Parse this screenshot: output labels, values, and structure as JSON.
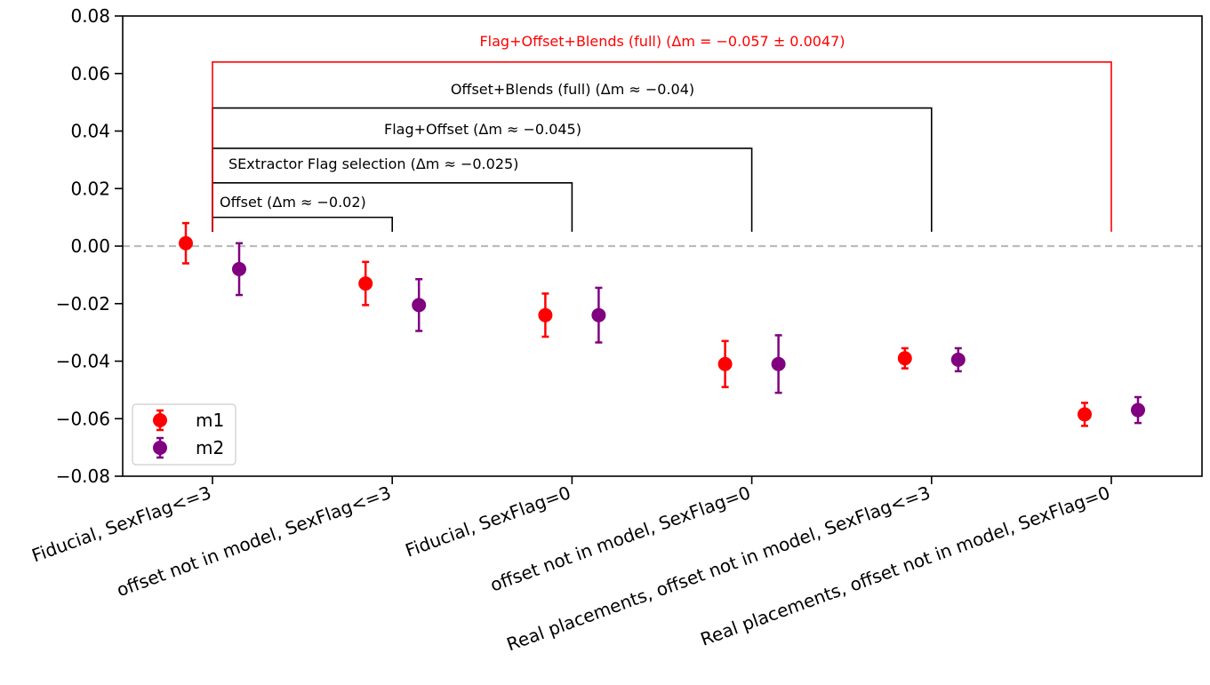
{
  "chart_data": {
    "type": "scatter",
    "categories": [
      "Fiducial, SexFlag<=3",
      "offset not in model, SexFlag<=3",
      "Fiducial, SexFlag=0",
      "offset not in model, SexFlag=0",
      "Real placements, offset not in model, SexFlag<=3",
      "Real placements, offset not in model, SexFlag=0"
    ],
    "series": [
      {
        "name": "m1",
        "color": "#ff0000",
        "values": [
          0.001,
          -0.013,
          -0.024,
          -0.041,
          -0.039,
          -0.0585
        ],
        "errors": [
          0.007,
          0.0075,
          0.0075,
          0.008,
          0.0035,
          0.004
        ]
      },
      {
        "name": "m2",
        "color": "#800080",
        "values": [
          -0.008,
          -0.0205,
          -0.024,
          -0.041,
          -0.0395,
          -0.057
        ],
        "errors": [
          0.009,
          0.009,
          0.0095,
          0.01,
          0.004,
          0.0045
        ]
      }
    ],
    "yticks": [
      "0.08",
      "0.06",
      "0.04",
      "0.02",
      "0.00",
      "−0.02",
      "−0.04",
      "−0.06",
      "−0.08"
    ],
    "ytick_values": [
      0.08,
      0.06,
      0.04,
      0.02,
      0.0,
      -0.02,
      -0.04,
      -0.06,
      -0.08
    ],
    "ylim": [
      -0.08,
      0.08
    ],
    "reference_line": {
      "y": 0.0,
      "style": "dashed",
      "color": "#bbbbbb"
    },
    "brackets": [
      {
        "label": "Offset (Δm ≈ −0.02)",
        "from": 0,
        "to": 1,
        "height": 0.01,
        "color": "#000000"
      },
      {
        "label": "SExtractor Flag selection (Δm ≈ −0.025)",
        "from": 0,
        "to": 2,
        "height": 0.022,
        "color": "#000000"
      },
      {
        "label": "Flag+Offset (Δm ≈ −0.045)",
        "from": 0,
        "to": 3,
        "height": 0.034,
        "color": "#000000"
      },
      {
        "label": "Offset+Blends (full) (Δm ≈ −0.04)",
        "from": 0,
        "to": 4,
        "height": 0.048,
        "color": "#000000"
      },
      {
        "label": "Flag+Offset+Blends (full) (Δm = −0.057 ± 0.0047)",
        "from": 0,
        "to": 5,
        "height": 0.064,
        "color": "#ff0000"
      }
    ],
    "legend": {
      "placement": "lower-left",
      "entries": [
        "m1",
        "m2"
      ]
    },
    "grid": false
  }
}
